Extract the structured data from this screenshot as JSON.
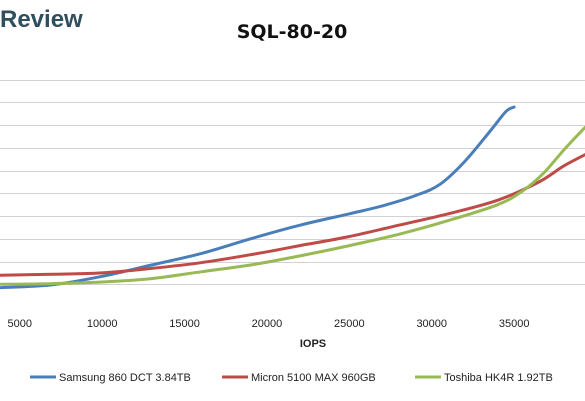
{
  "brand": {
    "text": "Review"
  },
  "chart_data": {
    "type": "line",
    "title": "SQL-80-20",
    "xlabel": "IOPS",
    "ylabel": "",
    "x_ticks": [
      5000,
      10000,
      15000,
      20000,
      25000,
      30000,
      35000
    ],
    "xlim": [
      3800,
      39300
    ],
    "ylim": [
      0,
      11
    ],
    "y_gridlines": [
      1,
      2,
      3,
      4,
      5,
      6,
      7,
      8,
      9,
      10
    ],
    "y_ticks_labeled": false,
    "grid": "horizontal",
    "legend_position": "bottom",
    "series": [
      {
        "name": "Samsung 860 DCT 3.84TB",
        "color": "#4a7ebb",
        "points": [
          [
            3800,
            0.85
          ],
          [
            7000,
            0.98
          ],
          [
            10000,
            1.35
          ],
          [
            13000,
            1.85
          ],
          [
            16000,
            2.35
          ],
          [
            19000,
            3.0
          ],
          [
            22000,
            3.6
          ],
          [
            25000,
            4.1
          ],
          [
            27000,
            4.45
          ],
          [
            29000,
            4.9
          ],
          [
            30500,
            5.4
          ],
          [
            32000,
            6.4
          ],
          [
            33500,
            7.7
          ],
          [
            34500,
            8.6
          ],
          [
            35000,
            8.8
          ]
        ]
      },
      {
        "name": "Micron 5100 MAX 960GB",
        "color": "#be4b48",
        "points": [
          [
            3800,
            1.4
          ],
          [
            7000,
            1.44
          ],
          [
            10000,
            1.5
          ],
          [
            13000,
            1.7
          ],
          [
            16000,
            1.95
          ],
          [
            19000,
            2.3
          ],
          [
            22000,
            2.7
          ],
          [
            25000,
            3.1
          ],
          [
            28000,
            3.6
          ],
          [
            31000,
            4.1
          ],
          [
            34000,
            4.7
          ],
          [
            36500,
            5.5
          ],
          [
            38000,
            6.2
          ],
          [
            39300,
            6.7
          ]
        ]
      },
      {
        "name": "Toshiba HK4R 1.92TB",
        "color": "#98b954",
        "points": [
          [
            3800,
            1.0
          ],
          [
            7000,
            1.03
          ],
          [
            10000,
            1.1
          ],
          [
            13000,
            1.25
          ],
          [
            16000,
            1.55
          ],
          [
            19000,
            1.85
          ],
          [
            22000,
            2.25
          ],
          [
            25000,
            2.7
          ],
          [
            28000,
            3.2
          ],
          [
            31000,
            3.8
          ],
          [
            34000,
            4.5
          ],
          [
            35500,
            5.1
          ],
          [
            36800,
            5.9
          ],
          [
            38000,
            6.9
          ],
          [
            39300,
            7.9
          ]
        ]
      }
    ]
  }
}
